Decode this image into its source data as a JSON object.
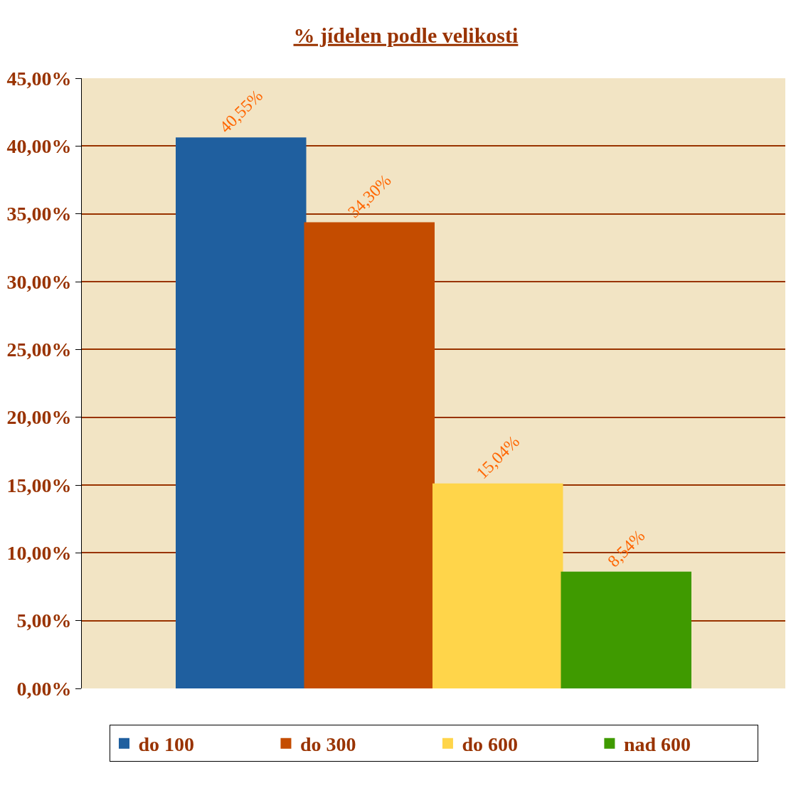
{
  "chart_data": {
    "type": "bar",
    "title": "% jídelen podle velikosti",
    "categories": [
      null
    ],
    "series": [
      {
        "name": "do 100",
        "color": "#1f5f9f",
        "values": [
          40.55
        ],
        "value_labels": [
          "40,55%"
        ]
      },
      {
        "name": "do 300",
        "color": "#c44c00",
        "values": [
          34.3
        ],
        "value_labels": [
          "34,30%"
        ]
      },
      {
        "name": "do 600",
        "color": "#ffd54a",
        "values": [
          15.04
        ],
        "value_labels": [
          "15,04%"
        ]
      },
      {
        "name": "nad 600",
        "color": "#3f9a00",
        "values": [
          8.54
        ],
        "value_labels": [
          "8,54%"
        ]
      }
    ],
    "ylim": [
      0,
      45
    ],
    "yticks": [
      {
        "value": 0,
        "label": "0,00%"
      },
      {
        "value": 5,
        "label": "5,00%"
      },
      {
        "value": 10,
        "label": "10,00%"
      },
      {
        "value": 15,
        "label": "15,00%"
      },
      {
        "value": 20,
        "label": "20,00%"
      },
      {
        "value": 25,
        "label": "25,00%"
      },
      {
        "value": 30,
        "label": "30,00%"
      },
      {
        "value": 35,
        "label": "35,00%"
      },
      {
        "value": 40,
        "label": "40,00%"
      },
      {
        "value": 45,
        "label": "45,00%"
      }
    ],
    "grid": "y",
    "legend": "bottom"
  }
}
